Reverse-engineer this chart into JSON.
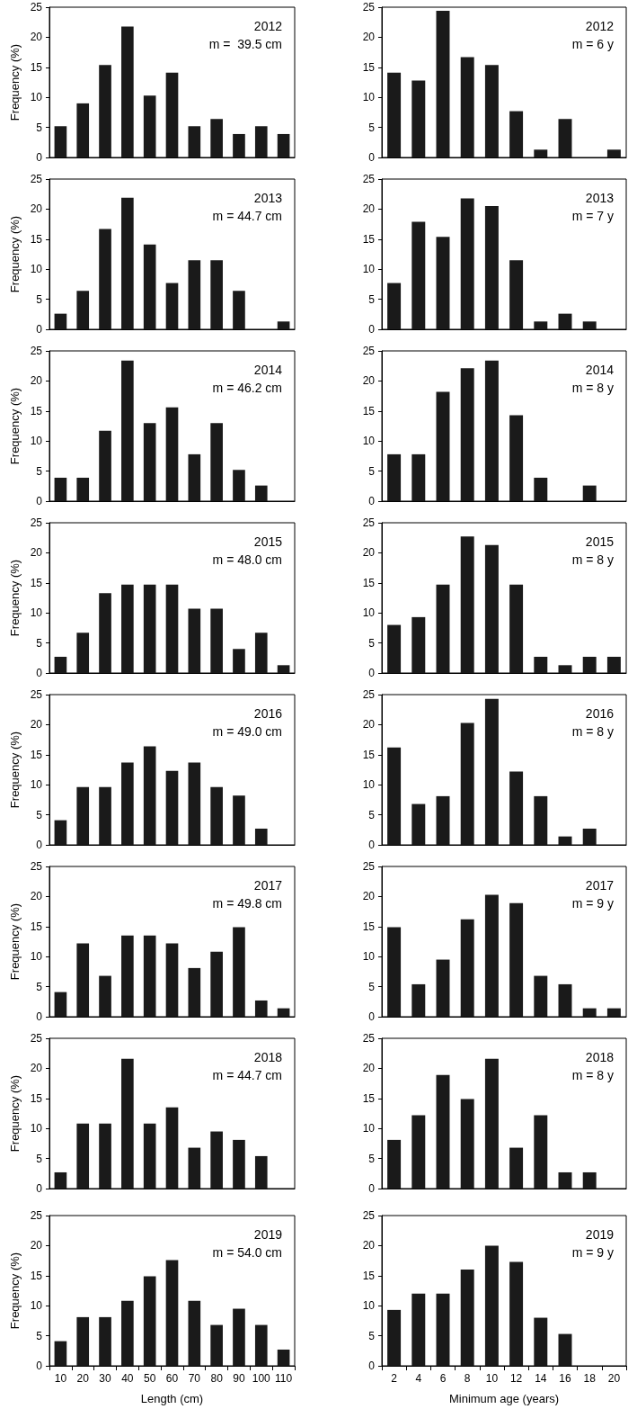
{
  "chart_data": [
    {
      "type": "bar",
      "ylabel": "Frequency (%)",
      "annotations": [
        "2012",
        "m =  39.5 cm"
      ],
      "categories": [
        "10",
        "20",
        "30",
        "40",
        "50",
        "60",
        "70",
        "80",
        "90",
        "100",
        "110"
      ],
      "values": [
        5.2,
        9,
        15.4,
        21.8,
        10.3,
        14.1,
        5.2,
        6.4,
        3.9,
        5.2,
        3.9
      ],
      "color": "#1a1a1a",
      "ylim": [
        0,
        25
      ],
      "yticks": [
        0,
        5,
        10,
        15,
        20,
        25
      ],
      "tick_labels": "y"
    },
    {
      "type": "bar",
      "annotations": [
        "2012",
        "m = 6 y"
      ],
      "categories": [
        "2",
        "4",
        "6",
        "8",
        "10",
        "12",
        "14",
        "16",
        "18",
        "20"
      ],
      "values": [
        14.1,
        12.8,
        24.4,
        16.7,
        15.4,
        7.7,
        1.3,
        6.4,
        0,
        1.3
      ],
      "color": "#1a1a1a",
      "ylim": [
        0,
        25
      ],
      "yticks": [
        0,
        5,
        10,
        15,
        20,
        25
      ],
      "tick_labels": "y"
    },
    {
      "type": "bar",
      "ylabel": "Frequency (%)",
      "annotations": [
        "2013",
        "m = 44.7 cm"
      ],
      "categories": [
        "10",
        "20",
        "30",
        "40",
        "50",
        "60",
        "70",
        "80",
        "90",
        "100",
        "110"
      ],
      "values": [
        2.6,
        6.4,
        16.7,
        21.9,
        14.1,
        7.7,
        11.5,
        11.5,
        6.4,
        0,
        1.3
      ],
      "color": "#1a1a1a",
      "ylim": [
        0,
        25
      ],
      "yticks": [
        0,
        5,
        10,
        15,
        20,
        25
      ],
      "tick_labels": "y"
    },
    {
      "type": "bar",
      "annotations": [
        "2013",
        "m = 7 y"
      ],
      "categories": [
        "2",
        "4",
        "6",
        "8",
        "10",
        "12",
        "14",
        "16",
        "18",
        "20"
      ],
      "values": [
        7.7,
        17.9,
        15.4,
        21.8,
        20.5,
        11.5,
        1.3,
        2.6,
        1.3,
        0
      ],
      "color": "#1a1a1a",
      "ylim": [
        0,
        25
      ],
      "yticks": [
        0,
        5,
        10,
        15,
        20,
        25
      ],
      "tick_labels": "y"
    },
    {
      "type": "bar",
      "ylabel": "Frequency (%)",
      "annotations": [
        "2014",
        "m = 46.2 cm"
      ],
      "categories": [
        "10",
        "20",
        "30",
        "40",
        "50",
        "60",
        "70",
        "80",
        "90",
        "100",
        "110"
      ],
      "values": [
        3.9,
        3.9,
        11.7,
        23.4,
        13,
        15.6,
        7.8,
        13,
        5.2,
        2.6,
        0
      ],
      "color": "#1a1a1a",
      "ylim": [
        0,
        25
      ],
      "yticks": [
        0,
        5,
        10,
        15,
        20,
        25
      ],
      "tick_labels": "y"
    },
    {
      "type": "bar",
      "annotations": [
        "2014",
        "m = 8 y"
      ],
      "categories": [
        "2",
        "4",
        "6",
        "8",
        "10",
        "12",
        "14",
        "16",
        "18",
        "20"
      ],
      "values": [
        7.8,
        7.8,
        18.2,
        22.1,
        23.4,
        14.3,
        3.9,
        0,
        2.6,
        0
      ],
      "color": "#1a1a1a",
      "ylim": [
        0,
        25
      ],
      "yticks": [
        0,
        5,
        10,
        15,
        20,
        25
      ],
      "tick_labels": "y"
    },
    {
      "type": "bar",
      "ylabel": "Frequency (%)",
      "annotations": [
        "2015",
        "m = 48.0 cm"
      ],
      "categories": [
        "10",
        "20",
        "30",
        "40",
        "50",
        "60",
        "70",
        "80",
        "90",
        "100",
        "110"
      ],
      "values": [
        2.7,
        6.7,
        13.3,
        14.7,
        14.7,
        14.7,
        10.7,
        10.7,
        4,
        6.7,
        1.3
      ],
      "color": "#1a1a1a",
      "ylim": [
        0,
        25
      ],
      "yticks": [
        0,
        5,
        10,
        15,
        20,
        25
      ],
      "tick_labels": "y"
    },
    {
      "type": "bar",
      "annotations": [
        "2015",
        "m = 8 y"
      ],
      "categories": [
        "2",
        "4",
        "6",
        "8",
        "10",
        "12",
        "14",
        "16",
        "18",
        "20"
      ],
      "values": [
        8,
        9.3,
        14.7,
        22.7,
        21.3,
        14.7,
        2.7,
        1.3,
        2.7,
        2.7
      ],
      "color": "#1a1a1a",
      "ylim": [
        0,
        25
      ],
      "yticks": [
        0,
        5,
        10,
        15,
        20,
        25
      ],
      "tick_labels": "y"
    },
    {
      "type": "bar",
      "ylabel": "Frequency (%)",
      "annotations": [
        "2016",
        "m = 49.0 cm"
      ],
      "categories": [
        "10",
        "20",
        "30",
        "40",
        "50",
        "60",
        "70",
        "80",
        "90",
        "100",
        "110"
      ],
      "values": [
        4.1,
        9.6,
        9.6,
        13.7,
        16.4,
        12.3,
        13.7,
        9.6,
        8.2,
        2.7,
        0
      ],
      "color": "#1a1a1a",
      "ylim": [
        0,
        25
      ],
      "yticks": [
        0,
        5,
        10,
        15,
        20,
        25
      ],
      "tick_labels": "y"
    },
    {
      "type": "bar",
      "annotations": [
        "2016",
        "m = 8 y"
      ],
      "categories": [
        "2",
        "4",
        "6",
        "8",
        "10",
        "12",
        "14",
        "16",
        "18",
        "20"
      ],
      "values": [
        16.2,
        6.8,
        8.1,
        20.3,
        24.3,
        12.2,
        8.1,
        1.4,
        2.7,
        0
      ],
      "color": "#1a1a1a",
      "ylim": [
        0,
        25
      ],
      "yticks": [
        0,
        5,
        10,
        15,
        20,
        25
      ],
      "tick_labels": "y"
    },
    {
      "type": "bar",
      "ylabel": "Frequency (%)",
      "annotations": [
        "2017",
        "m = 49.8 cm"
      ],
      "categories": [
        "10",
        "20",
        "30",
        "40",
        "50",
        "60",
        "70",
        "80",
        "90",
        "100",
        "110"
      ],
      "values": [
        4.1,
        12.2,
        6.8,
        13.5,
        13.5,
        12.2,
        8.1,
        10.8,
        14.9,
        2.7,
        1.4
      ],
      "color": "#1a1a1a",
      "ylim": [
        0,
        25
      ],
      "yticks": [
        0,
        5,
        10,
        15,
        20,
        25
      ],
      "tick_labels": "y"
    },
    {
      "type": "bar",
      "annotations": [
        "2017",
        "m = 9 y"
      ],
      "categories": [
        "2",
        "4",
        "6",
        "8",
        "10",
        "12",
        "14",
        "16",
        "18",
        "20"
      ],
      "values": [
        14.9,
        5.4,
        9.5,
        16.2,
        20.3,
        18.9,
        6.8,
        5.4,
        1.4,
        1.4
      ],
      "color": "#1a1a1a",
      "ylim": [
        0,
        25
      ],
      "yticks": [
        0,
        5,
        10,
        15,
        20,
        25
      ],
      "tick_labels": "y"
    },
    {
      "type": "bar",
      "ylabel": "Frequency (%)",
      "annotations": [
        "2018",
        "m = 44.7 cm"
      ],
      "categories": [
        "10",
        "20",
        "30",
        "40",
        "50",
        "60",
        "70",
        "80",
        "90",
        "100",
        "110"
      ],
      "values": [
        2.7,
        10.8,
        10.8,
        21.6,
        10.8,
        13.5,
        6.8,
        9.5,
        8.1,
        5.4,
        0
      ],
      "color": "#1a1a1a",
      "ylim": [
        0,
        25
      ],
      "yticks": [
        0,
        5,
        10,
        15,
        20,
        25
      ],
      "tick_labels": "y"
    },
    {
      "type": "bar",
      "annotations": [
        "2018",
        "m = 8 y"
      ],
      "categories": [
        "2",
        "4",
        "6",
        "8",
        "10",
        "12",
        "14",
        "16",
        "18",
        "20"
      ],
      "values": [
        8.1,
        12.2,
        18.9,
        14.9,
        21.6,
        6.8,
        12.2,
        2.7,
        2.7,
        0
      ],
      "color": "#1a1a1a",
      "ylim": [
        0,
        25
      ],
      "yticks": [
        0,
        5,
        10,
        15,
        20,
        25
      ],
      "tick_labels": "y"
    },
    {
      "type": "bar",
      "ylabel": "Frequency (%)",
      "xlabel": "Length (cm)",
      "annotations": [
        "2019",
        "m = 54.0 cm"
      ],
      "categories": [
        "10",
        "20",
        "30",
        "40",
        "50",
        "60",
        "70",
        "80",
        "90",
        "100",
        "110"
      ],
      "values": [
        4.1,
        8.1,
        8.1,
        10.8,
        14.9,
        17.6,
        10.8,
        6.8,
        9.5,
        6.8,
        2.7
      ],
      "color": "#1a1a1a",
      "ylim": [
        0,
        25
      ],
      "yticks": [
        0,
        5,
        10,
        15,
        20,
        25
      ]
    },
    {
      "type": "bar",
      "xlabel": "Minimum age (years)",
      "annotations": [
        "2019",
        "m = 9 y"
      ],
      "categories": [
        "2",
        "4",
        "6",
        "8",
        "10",
        "12",
        "14",
        "16",
        "18",
        "20"
      ],
      "values": [
        9.3,
        12,
        12,
        16,
        20,
        17.3,
        8,
        5.3,
        0,
        0
      ],
      "color": "#1a1a1a",
      "ylim": [
        0,
        25
      ],
      "yticks": [
        0,
        5,
        10,
        15,
        20,
        25
      ]
    }
  ]
}
